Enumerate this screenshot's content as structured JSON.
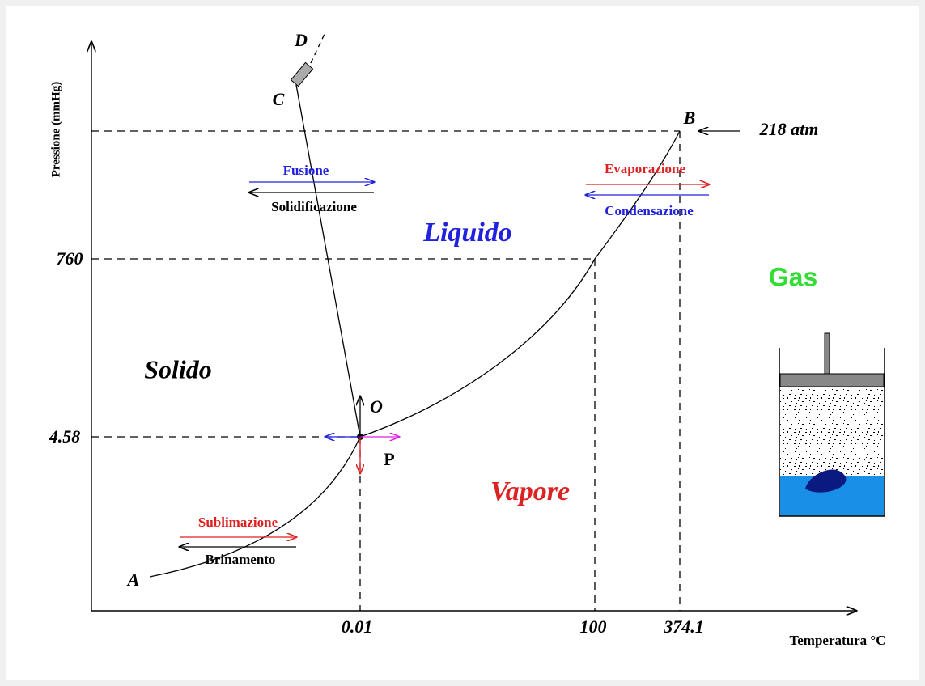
{
  "axes": {
    "y_label": "Pressione (mmHg)",
    "x_label": "Temperatura °C",
    "y_ticks": [
      "760",
      "4.58"
    ],
    "x_ticks": [
      "0.01",
      "100",
      "374.1"
    ]
  },
  "points": {
    "A": "A",
    "B": "B",
    "C": "C",
    "D": "D",
    "O": "O",
    "P": "P"
  },
  "annotation": "218 atm",
  "regions": {
    "liquid": "Liquido",
    "solid": "Solido",
    "gas": "Gas",
    "vapor": "Vapore"
  },
  "transitions": {
    "fusion": "Fusione",
    "solidification": "Solidificazione",
    "evaporation": "Evaporazione",
    "condensation": "Condensazione",
    "sublimation": "Sublimazione",
    "deposition": "Brinamento"
  }
}
